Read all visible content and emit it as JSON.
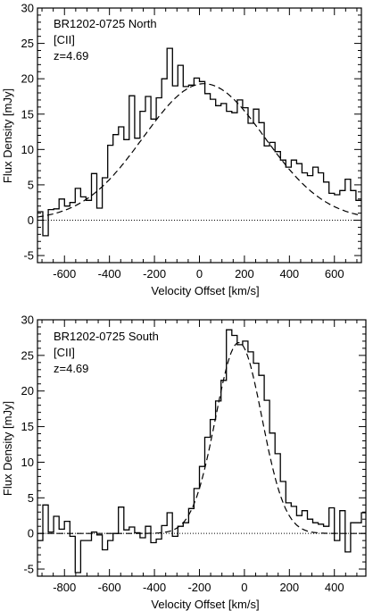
{
  "chart_data": [
    {
      "type": "line",
      "annotations": [
        "BR1202-0725 North",
        "[CII]",
        "z=4.69"
      ],
      "xlabel": "Velocity Offset [km/s]",
      "ylabel": "Flux Density [mJy]",
      "xlim": [
        -720,
        720
      ],
      "ylim": [
        -6,
        30
      ],
      "xticks": [
        -600,
        -400,
        -200,
        0,
        200,
        400,
        600
      ],
      "yticks": [
        -5,
        0,
        5,
        10,
        15,
        20,
        25,
        30
      ],
      "zero_line": "dotted",
      "series": [
        {
          "style": "histogram",
          "bin_width": 24,
          "x": [
            -708,
            -684,
            -660,
            -636,
            -612,
            -588,
            -564,
            -540,
            -516,
            -492,
            -468,
            -444,
            -420,
            -396,
            -372,
            -348,
            -324,
            -300,
            -276,
            -252,
            -228,
            -204,
            -180,
            -156,
            -132,
            -108,
            -84,
            -60,
            -36,
            -12,
            12,
            36,
            60,
            84,
            108,
            132,
            156,
            180,
            204,
            228,
            252,
            276,
            300,
            324,
            348,
            372,
            396,
            420,
            444,
            468,
            492,
            516,
            540,
            564,
            588,
            612,
            636,
            660,
            684,
            708
          ],
          "y": [
            1.2,
            -2.2,
            1.5,
            1.6,
            3.0,
            2.0,
            2.5,
            4.5,
            3.3,
            2.8,
            6.6,
            1.7,
            6.0,
            10.6,
            12.1,
            13.2,
            11.4,
            17.6,
            11.6,
            15.4,
            17.5,
            14.3,
            17.3,
            20.0,
            24.3,
            19.0,
            21.9,
            18.9,
            19.1,
            20.1,
            19.6,
            17.9,
            17.1,
            16.2,
            16.5,
            15.4,
            15.2,
            17.0,
            15.9,
            13.7,
            15.7,
            13.8,
            10.5,
            11.0,
            9.7,
            8.5,
            7.5,
            8.5,
            8.0,
            6.7,
            6.3,
            7.5,
            6.7,
            5.4,
            3.8,
            3.6,
            4.2,
            5.8,
            4.2,
            2.8
          ]
        },
        {
          "style": "dashed",
          "model": "gaussian",
          "amplitude": 19.3,
          "center": 20,
          "sigma": 270
        }
      ]
    },
    {
      "type": "line",
      "annotations": [
        "BR1202-0725 South",
        "[CII]",
        "z=4.69"
      ],
      "xlabel": "Velocity Offset [km/s]",
      "ylabel": "Flux Density [mJy]",
      "xlim": [
        -920,
        540
      ],
      "ylim": [
        -6,
        30
      ],
      "xticks": [
        -800,
        -600,
        -400,
        -200,
        0,
        200,
        400
      ],
      "yticks": [
        -5,
        0,
        5,
        10,
        15,
        20,
        25,
        30
      ],
      "zero_line": "dotted",
      "series": [
        {
          "style": "histogram",
          "bin_width": 24,
          "x": [
            -908,
            -884,
            -860,
            -836,
            -812,
            -788,
            -764,
            -740,
            -716,
            -692,
            -668,
            -644,
            -620,
            -596,
            -572,
            -548,
            -524,
            -500,
            -476,
            -452,
            -428,
            -404,
            -380,
            -356,
            -332,
            -308,
            -284,
            -260,
            -236,
            -212,
            -188,
            -164,
            -140,
            -116,
            -92,
            -68,
            -44,
            -20,
            4,
            28,
            52,
            76,
            100,
            124,
            148,
            172,
            196,
            220,
            244,
            268,
            292,
            316,
            340,
            364,
            388,
            412,
            436,
            460,
            484,
            508,
            532
          ],
          "y": [
            -1.0,
            4.0,
            0.2,
            2.4,
            0.6,
            1.7,
            -0.4,
            -5.5,
            -1.0,
            -1.0,
            0.2,
            -0.2,
            -2.3,
            -1.0,
            0.0,
            3.7,
            0.5,
            0.9,
            0.1,
            -0.6,
            1.0,
            -1.3,
            -0.8,
            1.1,
            2.9,
            -0.4,
            1.0,
            1.5,
            3.5,
            6.3,
            9.4,
            13.5,
            16.0,
            18.6,
            21.5,
            28.6,
            27.8,
            26.5,
            27.0,
            25.5,
            23.9,
            22.2,
            18.7,
            14.1,
            11.2,
            7.3,
            4.3,
            3.8,
            2.5,
            3.2,
            2.0,
            1.5,
            1.3,
            1.0,
            3.6,
            -1.0,
            3.2,
            -2.6,
            1.5,
            1.5,
            2.9
          ]
        },
        {
          "style": "dashed",
          "model": "gaussian",
          "amplitude": 26.8,
          "center": -25,
          "sigma": 103
        }
      ]
    }
  ]
}
